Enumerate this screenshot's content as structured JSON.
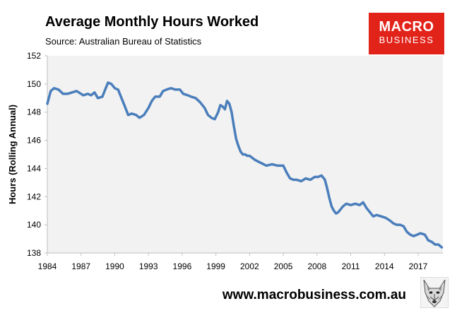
{
  "header": {
    "title": "Average Monthly Hours Worked",
    "subtitle": "Source: Australian Bureau of Statistics"
  },
  "logo": {
    "line1": "MACRO",
    "line2": "BUSINESS",
    "color": "#e2231a"
  },
  "footer": {
    "url": "www.macrobusiness.com.au",
    "mascot_icon": "wolf-head-icon"
  },
  "chart_data": {
    "type": "line",
    "title": "Average Monthly Hours Worked",
    "ylabel": "Hours (Rolling Annual)",
    "xlabel": "",
    "xlim": [
      1984,
      2019.2
    ],
    "ylim": [
      138,
      152
    ],
    "x_ticks": [
      1984,
      1987,
      1990,
      1993,
      1996,
      1999,
      2002,
      2005,
      2008,
      2011,
      2014,
      2017
    ],
    "y_ticks": [
      138,
      140,
      142,
      144,
      146,
      148,
      150,
      152
    ],
    "grid": false,
    "plot_background": "#f2f2f2",
    "series": [
      {
        "color": "#4a7ebb",
        "x": [
          1984.0,
          1984.3,
          1984.6,
          1985.0,
          1985.4,
          1985.8,
          1986.2,
          1986.6,
          1987.0,
          1987.2,
          1987.6,
          1987.9,
          1988.2,
          1988.5,
          1988.9,
          1989.1,
          1989.4,
          1989.7,
          1990.0,
          1990.3,
          1990.6,
          1990.9,
          1991.2,
          1991.5,
          1991.9,
          1992.2,
          1992.6,
          1993.0,
          1993.3,
          1993.6,
          1994.0,
          1994.3,
          1994.6,
          1995.0,
          1995.4,
          1995.8,
          1996.1,
          1996.5,
          1996.8,
          1997.2,
          1997.6,
          1998.0,
          1998.3,
          1998.6,
          1998.9,
          1999.2,
          1999.4,
          1999.6,
          1999.8,
          2000.0,
          2000.2,
          2000.4,
          2000.6,
          2000.8,
          2001.0,
          2001.2,
          2001.4,
          2001.6,
          2001.8,
          2002.0,
          2002.5,
          2003.0,
          2003.5,
          2004.0,
          2004.5,
          2005.0,
          2005.3,
          2005.6,
          2005.9,
          2006.2,
          2006.6,
          2007.0,
          2007.4,
          2007.8,
          2008.1,
          2008.4,
          2008.7,
          2008.9,
          2009.1,
          2009.3,
          2009.5,
          2009.7,
          2009.9,
          2010.1,
          2010.3,
          2010.6,
          2011.0,
          2011.4,
          2011.8,
          2012.1,
          2012.4,
          2012.7,
          2013.0,
          2013.3,
          2013.7,
          2014.1,
          2014.5,
          2014.8,
          2015.1,
          2015.4,
          2015.7,
          2016.0,
          2016.3,
          2016.6,
          2016.9,
          2017.2,
          2017.6,
          2017.9,
          2018.2,
          2018.5,
          2018.8,
          2019.1
        ],
        "y": [
          148.6,
          149.5,
          149.7,
          149.6,
          149.3,
          149.3,
          149.4,
          149.5,
          149.3,
          149.2,
          149.3,
          149.2,
          149.4,
          149.0,
          149.1,
          149.5,
          150.1,
          150.0,
          149.7,
          149.6,
          149.0,
          148.4,
          147.8,
          147.9,
          147.8,
          147.6,
          147.8,
          148.3,
          148.8,
          149.1,
          149.1,
          149.5,
          149.6,
          149.7,
          149.6,
          149.6,
          149.3,
          149.2,
          149.1,
          149.0,
          148.7,
          148.3,
          147.8,
          147.6,
          147.5,
          148.0,
          148.5,
          148.4,
          148.2,
          148.8,
          148.6,
          148.0,
          147.0,
          146.1,
          145.6,
          145.2,
          145.0,
          145.0,
          144.9,
          144.9,
          144.6,
          144.4,
          144.2,
          144.3,
          144.2,
          144.2,
          143.7,
          143.3,
          143.2,
          143.2,
          143.1,
          143.3,
          143.2,
          143.4,
          143.4,
          143.5,
          143.2,
          142.6,
          141.9,
          141.3,
          141.0,
          140.8,
          140.9,
          141.1,
          141.3,
          141.5,
          141.4,
          141.5,
          141.4,
          141.6,
          141.2,
          140.9,
          140.6,
          140.7,
          140.6,
          140.5,
          140.3,
          140.1,
          140.0,
          140.0,
          139.9,
          139.5,
          139.3,
          139.2,
          139.3,
          139.4,
          139.3,
          138.9,
          138.8,
          138.6,
          138.6,
          138.4
        ]
      }
    ]
  }
}
